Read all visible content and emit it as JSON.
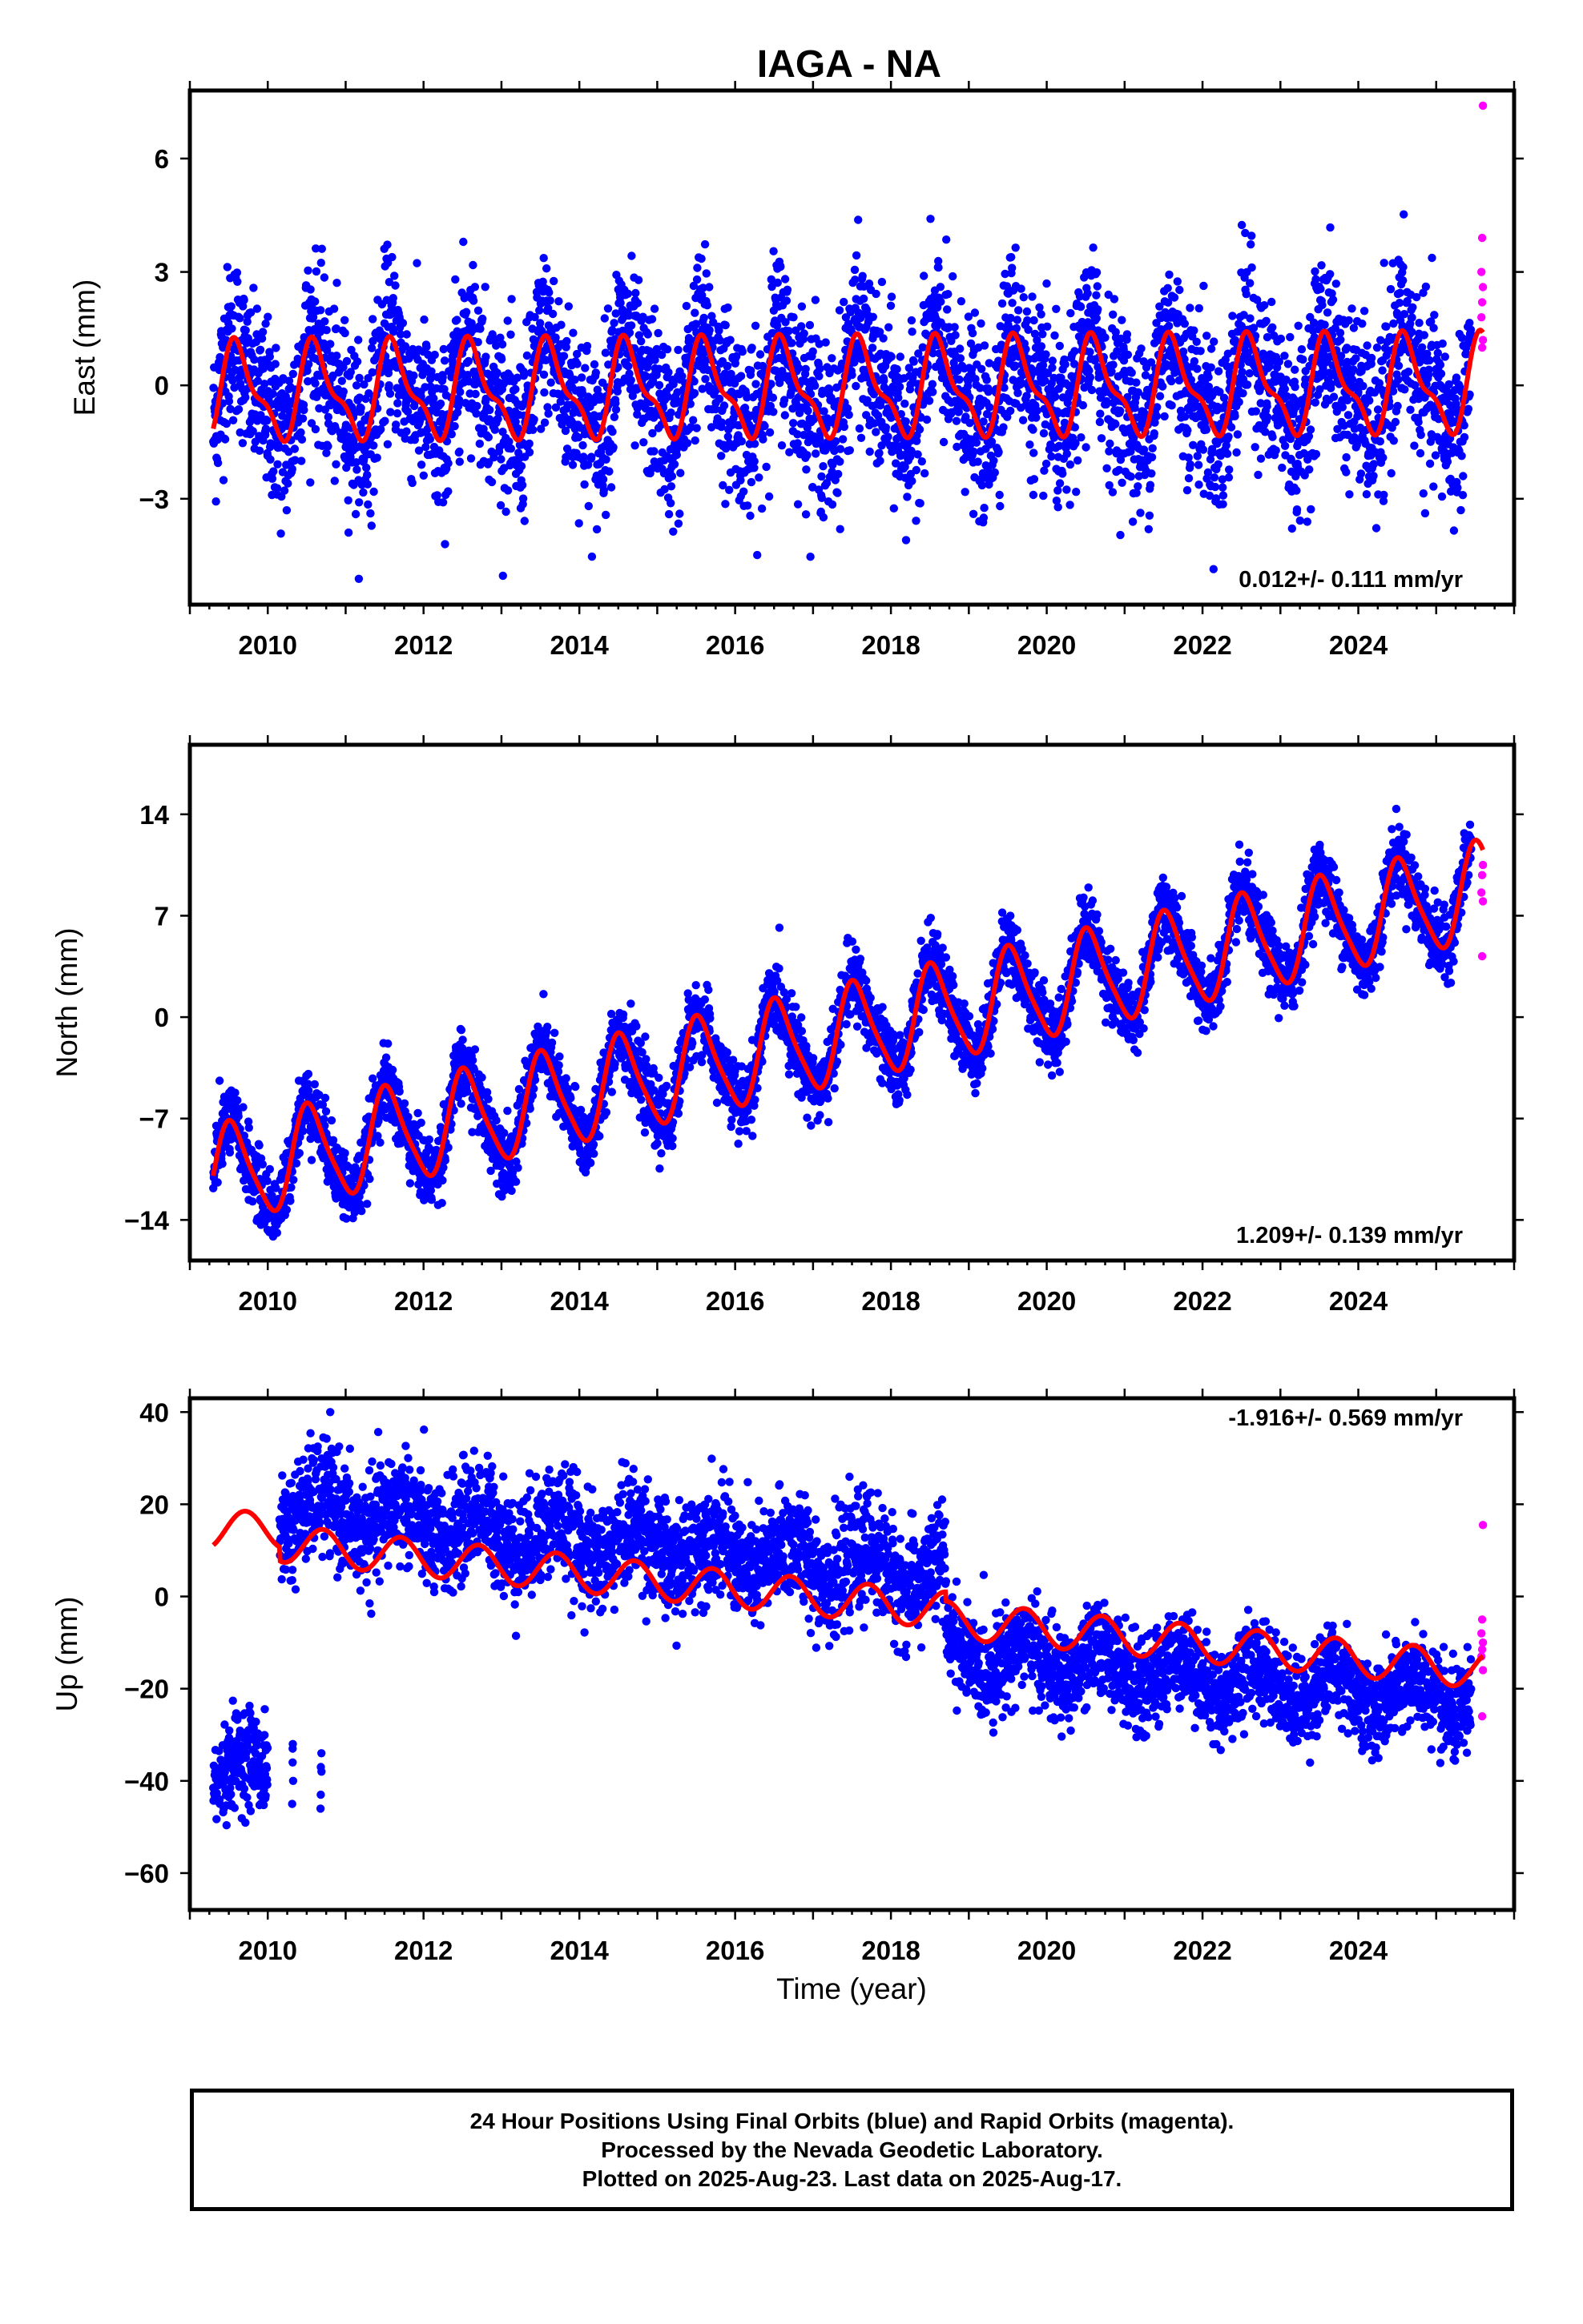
{
  "figure": {
    "title": "IAGA - NA",
    "xlabel": "Time (year)",
    "caption_lines": [
      "24 Hour Positions Using Final Orbits (blue) and Rapid Orbits (magenta).",
      "Processed by the Nevada Geodetic Laboratory.",
      "Plotted on 2025-Aug-23. Last data on 2025-Aug-17."
    ],
    "colors": {
      "final_orbits": "#0000ff",
      "rapid_orbits": "#ff00ff",
      "model": "#ff0000",
      "frame": "#000000"
    }
  },
  "chart_data": [
    {
      "type": "scatter",
      "panel": "east",
      "ylabel": "East (mm)",
      "xlim": [
        2009.0,
        2026.0
      ],
      "ylim": [
        -5.8,
        7.8
      ],
      "xticks": [
        2010,
        2012,
        2014,
        2016,
        2018,
        2020,
        2022,
        2024
      ],
      "yticks": [
        -3,
        0,
        3,
        6
      ],
      "rate_label": "0.012+/- 0.111 mm/yr",
      "data_start": 2009.3,
      "data_end": 2025.6,
      "rapid_start": 2025.45,
      "trend": {
        "intercept": -0.1,
        "rate": 0.012,
        "ref_year": 2017.5
      },
      "annual_amplitude": 1.15,
      "annual_phase_month_of_peak": 8,
      "semiannual_amplitude": 0.45,
      "scatter_sd": 1.1,
      "observed_range": [
        -5.5,
        5.8
      ],
      "rapid_values": [
        7.4,
        3.9,
        3.0,
        2.6,
        2.2,
        1.8,
        1.2,
        1.0
      ],
      "series": [
        {
          "name": "Final Orbits",
          "color": "#0000ff"
        },
        {
          "name": "Rapid Orbits",
          "color": "#ff00ff"
        },
        {
          "name": "Model",
          "color": "#ff0000"
        }
      ]
    },
    {
      "type": "scatter",
      "panel": "north",
      "ylabel": "North (mm)",
      "xlim": [
        2009.0,
        2026.0
      ],
      "ylim": [
        -16.8,
        18.8
      ],
      "xticks": [
        2010,
        2012,
        2014,
        2016,
        2018,
        2020,
        2022,
        2024
      ],
      "yticks": [
        -14,
        -7,
        0,
        7,
        14
      ],
      "rate_label": "1.209+/- 0.139 mm/yr",
      "data_start": 2009.3,
      "data_end": 2025.6,
      "rapid_start": 2025.45,
      "trend": {
        "intercept": -2.9,
        "rate": 1.209,
        "ref_year": 2016.0
      },
      "annual_amplitude": 3.3,
      "annual_phase_month_of_peak": 7,
      "semiannual_amplitude": 0.6,
      "scatter_sd": 1.2,
      "observed_range": [
        -16.0,
        18.5
      ],
      "rapid_values": [
        10.5,
        9.8,
        8.6,
        8.0,
        4.2
      ],
      "series": [
        {
          "name": "Final Orbits",
          "color": "#0000ff"
        },
        {
          "name": "Rapid Orbits",
          "color": "#ff00ff"
        },
        {
          "name": "Model",
          "color": "#ff0000"
        }
      ]
    },
    {
      "type": "scatter",
      "panel": "up",
      "ylabel": "Up (mm)",
      "xlim": [
        2009.0,
        2026.0
      ],
      "ylim": [
        -68,
        43
      ],
      "xticks": [
        2010,
        2012,
        2014,
        2016,
        2018,
        2020,
        2022,
        2024
      ],
      "yticks": [
        -60,
        -40,
        -20,
        0,
        20,
        40
      ],
      "rate_label": "-1.916+/- 0.569 mm/yr",
      "data_start": 2009.3,
      "data_end": 2025.6,
      "rapid_start": 2025.45,
      "offsets": [
        {
          "start": 2009.3,
          "end": 2010.15,
          "level": -38,
          "sd": 5,
          "model_level": 14.5
        },
        {
          "start": 2010.15,
          "end": 2018.7,
          "level": 19,
          "sd": 6,
          "model_start": 11.5,
          "model_end": -3
        },
        {
          "start": 2018.7,
          "end": 2025.6,
          "level": -12,
          "sd": 5,
          "model_start": -5,
          "model_end": -16
        }
      ],
      "outlier_cluster": {
        "start": 2010.3,
        "end": 2010.7,
        "values": [
          -32,
          -34,
          -36,
          -38,
          -40,
          -43,
          -45,
          -46,
          -33,
          -37
        ]
      },
      "annual_amplitude": 4.0,
      "annual_phase_month_of_peak": 9,
      "observed_range": [
        -66,
        40
      ],
      "rapid_values": [
        15.5,
        -5.0,
        -8.0,
        -10.0,
        -11.5,
        -13.0,
        -16.0,
        -26.0
      ],
      "series": [
        {
          "name": "Final Orbits",
          "color": "#0000ff"
        },
        {
          "name": "Rapid Orbits",
          "color": "#ff00ff"
        },
        {
          "name": "Model",
          "color": "#ff0000"
        }
      ]
    }
  ]
}
